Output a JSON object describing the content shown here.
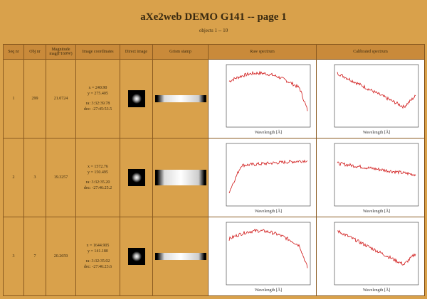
{
  "header": {
    "title": "aXe2web DEMO G141 -- page 1",
    "subtitle": "objects 1 -- 10"
  },
  "table": {
    "columns": [
      "Seq nr",
      "Obj nr",
      "Magnitude mag(F160W)",
      "Image coordinates",
      "Direct image",
      "Grism stamp",
      "Raw spectrum",
      "Calibrated spectrum"
    ],
    "x_axis_label": "Wavelength [Å]",
    "rows": [
      {
        "seq": "1",
        "obj": "299",
        "mag": "21.0724",
        "xy": [
          "x = 240.90",
          "y = 275.405"
        ],
        "radec": [
          "ra:  3:32:39.78",
          "dec: -27:45:53.5"
        ]
      },
      {
        "seq": "2",
        "obj": "3",
        "mag": "19.3257",
        "xy": [
          "x = 1572.76",
          "y = 150.495"
        ],
        "radec": [
          "ra:  3:32:35.20",
          "dec: -27:46:25.2"
        ]
      },
      {
        "seq": "3",
        "obj": "7",
        "mag": "20.2659",
        "xy": [
          "x = 1644.905",
          "y = 141.180"
        ],
        "radec": [
          "ra:  3:32:35.02",
          "dec: -27:46:23.6"
        ]
      }
    ]
  }
}
